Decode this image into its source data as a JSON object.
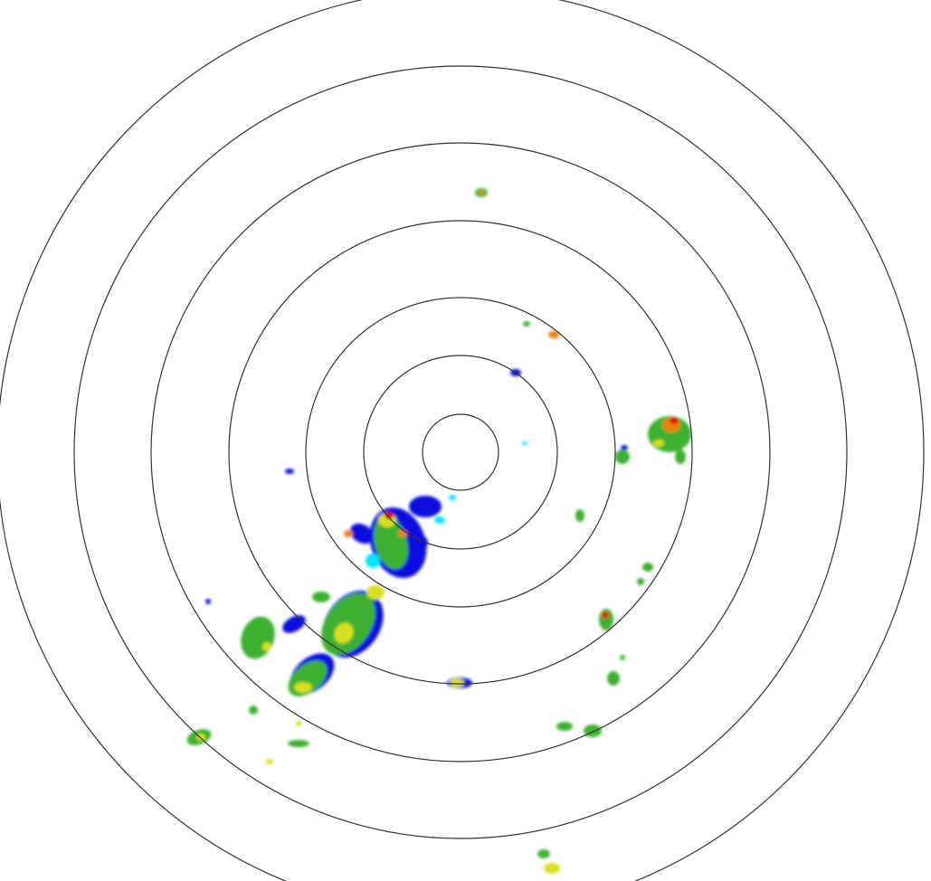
{
  "radar": {
    "ring_color": "#333333",
    "ring_count": 7,
    "echo_colors": {
      "light": "#00e5ff",
      "weak": "#1010e0",
      "moderate": "#3cb030",
      "strong": "#d8e020",
      "heavy": "#f08010",
      "intense": "#e01010"
    }
  }
}
